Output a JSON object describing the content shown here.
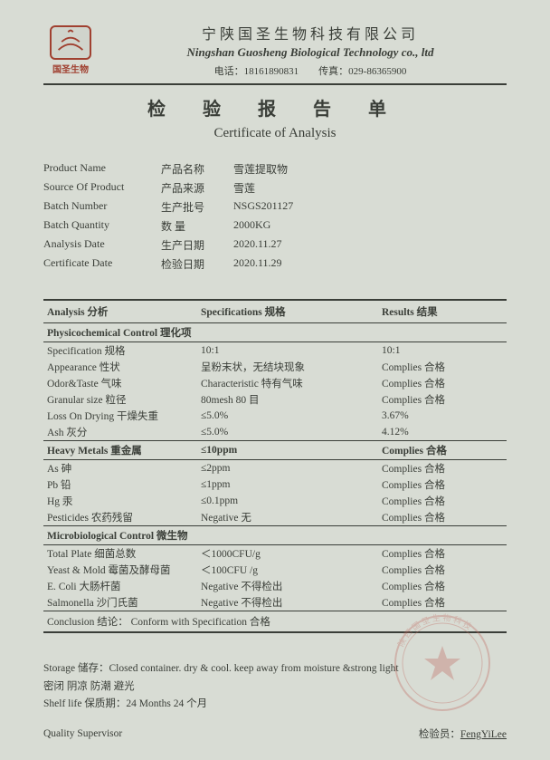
{
  "header": {
    "logo_caption": "国圣生物",
    "company_cn": "宁陕国圣生物科技有限公司",
    "company_en": "Ningshan Guosheng Biological Technology co., ltd",
    "phone_label": "电话：",
    "phone": "18161890831",
    "fax_label": "传真：",
    "fax": "029-86365900"
  },
  "title": {
    "cn": "检 验 报 告 单",
    "en": "Certificate of Analysis"
  },
  "info": [
    {
      "en": "Product Name",
      "cn": "产品名称",
      "val": "雪莲提取物"
    },
    {
      "en": "Source Of Product",
      "cn": "产品来源",
      "val": "雪莲"
    },
    {
      "en": "Batch Number",
      "cn": "生产批号",
      "val": "NSGS201127"
    },
    {
      "en": "Batch Quantity",
      "cn": "数    量",
      "val": "2000KG"
    },
    {
      "en": "Analysis Date",
      "cn": "生产日期",
      "val": "2020.11.27"
    },
    {
      "en": "Certificate Date",
      "cn": "检验日期",
      "val": "2020.11.29"
    }
  ],
  "coa": {
    "headers": {
      "c1": "Analysis 分析",
      "c2": "Specifications  规格",
      "c3": "Results 结果"
    },
    "sections": [
      {
        "title": "Physicochemical Control 理化项",
        "rows": [
          {
            "item": "Specification 规格",
            "spec": "10:1",
            "res": "10:1"
          },
          {
            "item": "Appearance 性状",
            "spec": "呈粉末状，无结块现象",
            "res": "Complies 合格"
          },
          {
            "item": "Odor&Taste 气味",
            "spec": "Characteristic  特有气味",
            "res": "Complies 合格"
          },
          {
            "item": "Granular size 粒径",
            "spec": "80mesh 80 目",
            "res": "Complies 合格"
          },
          {
            "item": "Loss On Drying 干燥失重",
            "spec": "≤5.0%",
            "res": "3.67%"
          },
          {
            "item": "Ash  灰分",
            "spec": "≤5.0%",
            "res": "4.12%"
          }
        ]
      },
      {
        "title": "Heavy Metals  重金属",
        "title_spec": "≤10ppm",
        "title_res": "Complies 合格",
        "rows": [
          {
            "item": "As 砷",
            "spec": "≤2ppm",
            "res": "Complies 合格"
          },
          {
            "item": "Pb 铅",
            "spec": "≤1ppm",
            "res": "Complies 合格"
          },
          {
            "item": "Hg 汞",
            "spec": "≤0.1ppm",
            "res": "Complies 合格"
          },
          {
            "item": "Pesticides  农药残留",
            "spec": "Negative 无",
            "res": "Complies 合格"
          }
        ]
      },
      {
        "title": "Microbiological Control 微生物",
        "rows": [
          {
            "item": "Total Plate 细菌总数",
            "spec": "＜1000CFU/g",
            "res": "Complies 合格"
          },
          {
            "item": "Yeast & Mold 霉菌及酵母菌",
            "spec": "＜100CFU /g",
            "res": "Complies 合格"
          },
          {
            "item": "E. Coli 大肠杆菌",
            "spec": "Negative  不得检出",
            "res": "Complies 合格"
          },
          {
            "item": "Salmonella 沙门氏菌",
            "spec": "Negative  不得检出",
            "res": "Complies 合格"
          }
        ]
      }
    ],
    "conclusion": {
      "label": "Conclusion 结论：",
      "val": "Conform with Specification 合格"
    }
  },
  "storage": {
    "line1": "Storage 储存：Closed container. dry & cool. keep away from moisture &strong light",
    "line2": "密闭 阴凉 防潮 避光",
    "line3_label": "Shelf life 保质期：",
    "line3_val": "24 Months   24 个月"
  },
  "signature": {
    "left": "Quality    Supervisor",
    "right_label": "检验员：",
    "right_name": "FengYiLee"
  },
  "colors": {
    "background": "#d8dcd4",
    "text": "#3a3e38",
    "logo_border": "#a04030",
    "stamp": "#c06a60"
  }
}
